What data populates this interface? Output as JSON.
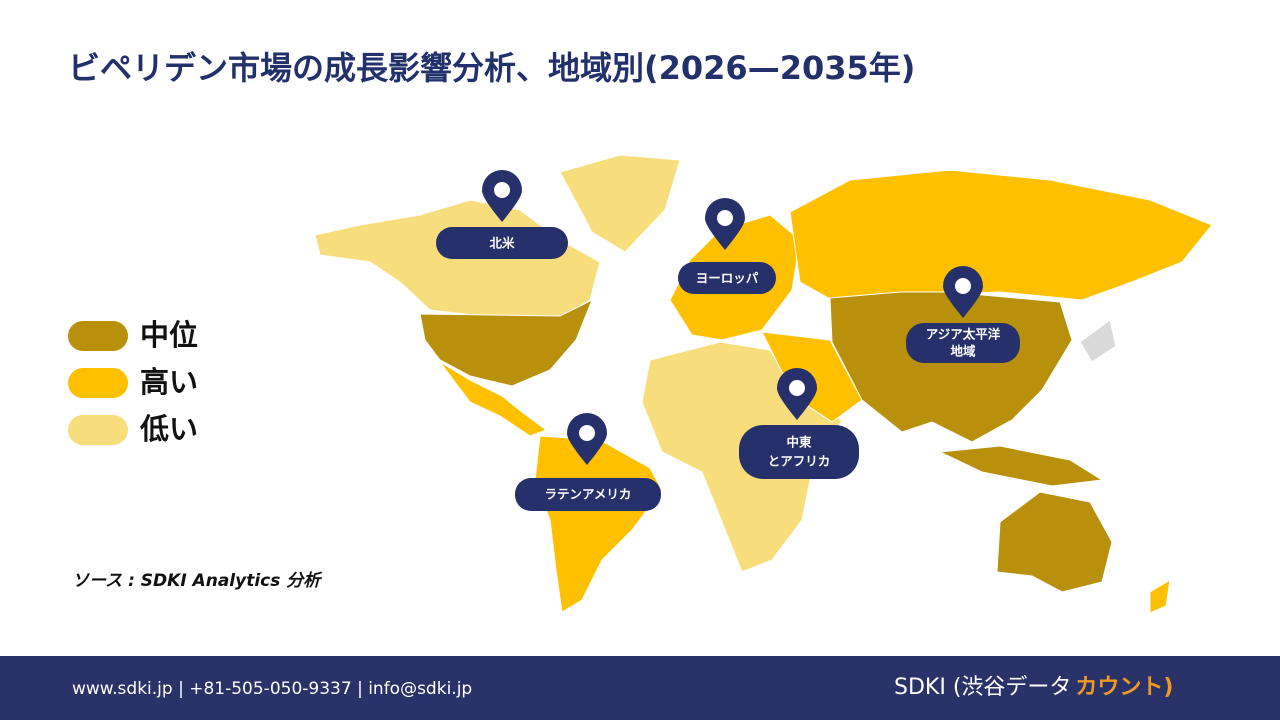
{
  "header": {
    "title": "ビペリデン市場の成長影響分析、地域別(2026—2035年)"
  },
  "legend": [
    {
      "label": "中位",
      "color": "#b8900b"
    },
    {
      "label": "高い",
      "color": "#ffc000"
    },
    {
      "label": "低い",
      "color": "#f8dd7c"
    }
  ],
  "regions": [
    {
      "lines": [
        "北米"
      ]
    },
    {
      "lines": [
        "ヨーロッパ"
      ]
    },
    {
      "lines": [
        "アジア太平洋",
        "地域"
      ]
    },
    {
      "lines": [
        "中東",
        "とアフリカ"
      ]
    },
    {
      "lines": [
        "ラテンアメリカ"
      ]
    }
  ],
  "source": "ソース : SDKI Analytics 分析",
  "footer": {
    "contact": "www.sdki.jp  | +81-505-050-9337 | info@sdki.jp",
    "brand": "SDKI (渋谷データ",
    "brand_highlight": "カウント)"
  }
}
